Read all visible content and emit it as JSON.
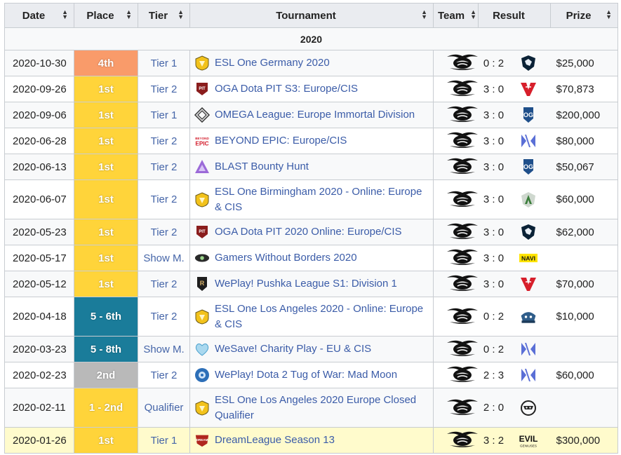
{
  "colors": {
    "place_4th": "#f99b6a",
    "place_1st": "#ffd43a",
    "place_top8": "#1a7c9a",
    "place_2nd": "#b9b9b9",
    "link": "#3b5ca8",
    "highlight": "#fffbcc"
  },
  "header": {
    "date": "Date",
    "place": "Place",
    "tier": "Tier",
    "tournament": "Tournament",
    "team": "Team",
    "result": "Result",
    "prize": "Prize",
    "sort_icon": "sort-icon"
  },
  "year": "2020",
  "rows": [
    {
      "date": "2020-10-30",
      "place": "4th",
      "place_color": "#f99b6a",
      "tier": "Tier 1",
      "tournament": "ESL One Germany 2020",
      "t_icon": "esl-icon",
      "team_icon": "team-secret-icon",
      "result": "0 : 2",
      "opp_icon": "team-liquid-icon",
      "prize": "$25,000"
    },
    {
      "date": "2020-09-26",
      "place": "1st",
      "place_color": "#ffd43a",
      "tier": "Tier 2",
      "tournament": "OGA Dota PIT S3: Europe/CIS",
      "t_icon": "pit-icon",
      "team_icon": "team-secret-icon",
      "result": "3 : 0",
      "opp_icon": "virtus-pro-icon",
      "prize": "$70,873"
    },
    {
      "date": "2020-09-06",
      "place": "1st",
      "place_color": "#ffd43a",
      "tier": "Tier 1",
      "tournament": "OMEGA League: Europe Immortal Division",
      "t_icon": "omega-icon",
      "team_icon": "team-secret-icon",
      "result": "3 : 0",
      "opp_icon": "og-icon",
      "prize": "$200,000"
    },
    {
      "date": "2020-06-28",
      "place": "1st",
      "place_color": "#ffd43a",
      "tier": "Tier 2",
      "tournament": "BEYOND EPIC: Europe/CIS",
      "t_icon": "beyond-epic-icon",
      "team_icon": "team-secret-icon",
      "result": "3 : 0",
      "opp_icon": "nigma-icon",
      "prize": "$80,000"
    },
    {
      "date": "2020-06-13",
      "place": "1st",
      "place_color": "#ffd43a",
      "tier": "Tier 2",
      "tournament": "BLAST Bounty Hunt",
      "t_icon": "blast-icon",
      "team_icon": "team-secret-icon",
      "result": "3 : 0",
      "opp_icon": "og-icon",
      "prize": "$50,067"
    },
    {
      "date": "2020-06-07",
      "place": "1st",
      "place_color": "#ffd43a",
      "tier": "Tier 2",
      "tournament": "ESL One Birmingham 2020 - Online: Europe & CIS",
      "t_icon": "esl-icon",
      "team_icon": "team-secret-icon",
      "result": "3 : 0",
      "opp_icon": "alliance-icon",
      "prize": "$60,000"
    },
    {
      "date": "2020-05-23",
      "place": "1st",
      "place_color": "#ffd43a",
      "tier": "Tier 2",
      "tournament": "OGA Dota PIT 2020 Online: Europe/CIS",
      "t_icon": "pit-icon",
      "team_icon": "team-secret-icon",
      "result": "3 : 0",
      "opp_icon": "team-liquid-icon",
      "prize": "$62,000"
    },
    {
      "date": "2020-05-17",
      "place": "1st",
      "place_color": "#ffd43a",
      "tier": "Show M.",
      "tournament": "Gamers Without Borders 2020",
      "t_icon": "gwb-icon",
      "team_icon": "team-secret-icon",
      "result": "3 : 0",
      "opp_icon": "navi-icon",
      "prize": ""
    },
    {
      "date": "2020-05-12",
      "place": "1st",
      "place_color": "#ffd43a",
      "tier": "Tier 2",
      "tournament": "WePlay! Pushka League S1: Division 1",
      "t_icon": "pushka-icon",
      "team_icon": "team-secret-icon",
      "result": "3 : 0",
      "opp_icon": "virtus-pro-icon",
      "prize": "$70,000"
    },
    {
      "date": "2020-04-18",
      "place": "5 - 6th",
      "place_color": "#1a7c9a",
      "tier": "Tier 2",
      "tournament": "ESL One Los Angeles 2020 - Online: Europe & CIS",
      "t_icon": "esl-icon",
      "team_icon": "team-secret-icon",
      "result": "0 : 2",
      "opp_icon": "vikin-gg-icon",
      "prize": "$10,000"
    },
    {
      "date": "2020-03-23",
      "place": "5 - 8th",
      "place_color": "#1a7c9a",
      "tier": "Show M.",
      "tournament": "WeSave! Charity Play - EU & CIS",
      "t_icon": "wesave-icon",
      "team_icon": "team-secret-icon",
      "result": "0 : 2",
      "opp_icon": "nigma-icon",
      "prize": ""
    },
    {
      "date": "2020-02-23",
      "place": "2nd",
      "place_color": "#b9b9b9",
      "tier": "Tier 2",
      "tournament": "WePlay! Dota 2 Tug of War: Mad Moon",
      "t_icon": "weplay-icon",
      "team_icon": "team-secret-icon",
      "result": "2 : 3",
      "opp_icon": "nigma-icon",
      "prize": "$60,000"
    },
    {
      "date": "2020-02-11",
      "place": "1 - 2nd",
      "place_color": "#ffd43a",
      "tier": "Qualifier",
      "tournament": "ESL One Los Angeles 2020 Europe Closed Qualifier",
      "t_icon": "esl-icon",
      "team_icon": "team-secret-icon",
      "result": "2 : 0",
      "opp_icon": "ninjas-in-pyjamas-icon",
      "prize": ""
    },
    {
      "date": "2020-01-26",
      "place": "1st",
      "place_color": "#ffd43a",
      "tier": "Tier 1",
      "tournament": "DreamLeague Season 13",
      "t_icon": "dreamleague-icon",
      "team_icon": "team-secret-icon",
      "result": "3 : 2",
      "opp_icon": "evil-geniuses-icon",
      "prize": "$300,000"
    }
  ]
}
